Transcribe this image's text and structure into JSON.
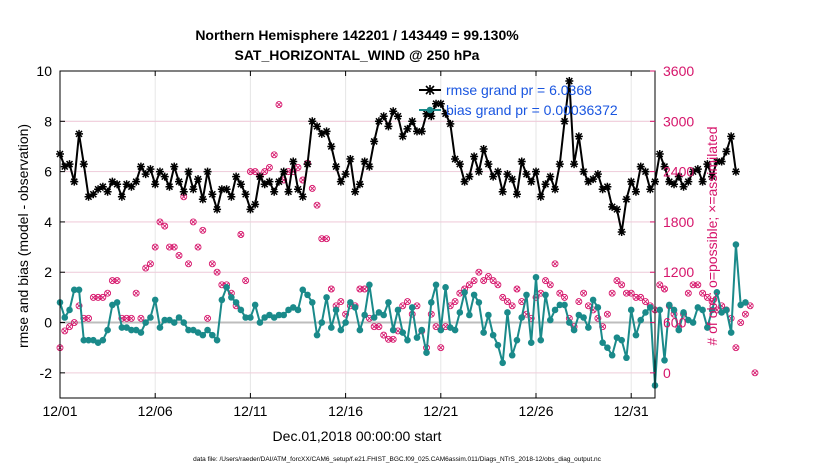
{
  "chart_data": {
    "type": "line",
    "title": "Northern Hemisphere 142201 / 143449 = 99.130%",
    "subtitle": "SAT_HORIZONTAL_WIND @ 250 hPa",
    "xlabel": "Dec.01,2018 00:00:00 start",
    "ylabel_left": "rmse and bias (model - observation)",
    "ylabel_right": "# of obs: o=possible; ×=assimilated",
    "footnote": "data file: /Users/raeder/DAI/ATM_forcXX/CAM6_setup/f.e21.FHIST_BGC.f09_025.CAM6assim.011/Diags_NTrS_2018-12/obs_diag_output.nc",
    "x_ticks": [
      {
        "v": 1,
        "label": "12/01"
      },
      {
        "v": 6,
        "label": "12/06"
      },
      {
        "v": 11,
        "label": "12/11"
      },
      {
        "v": 16,
        "label": "12/16"
      },
      {
        "v": 21,
        "label": "12/21"
      },
      {
        "v": 26,
        "label": "12/26"
      },
      {
        "v": 31,
        "label": "12/31"
      }
    ],
    "xlim": [
      1,
      32.25
    ],
    "ylim_left": [
      -3,
      10
    ],
    "yticks_left": [
      -2,
      0,
      2,
      4,
      6,
      8,
      10
    ],
    "ylim_right": [
      -300,
      3600
    ],
    "yticks_right": [
      0,
      600,
      1200,
      1800,
      2400,
      3000,
      3600
    ],
    "grid": true,
    "legend_position": "top-right",
    "colors": {
      "rmse": "#000000",
      "bias": "#1a8a8a",
      "obs": "#d6156b",
      "zero_line": "#bdbdbd"
    },
    "series": [
      {
        "name": "rmse grand pr = 6.0368",
        "axis": "left",
        "x_start": 1,
        "x_step": 0.25,
        "values": [
          6.7,
          6.2,
          6.3,
          5.6,
          7.5,
          6.3,
          5.0,
          5.1,
          5.3,
          5.4,
          5.2,
          5.6,
          5.5,
          5.0,
          5.5,
          5.4,
          5.6,
          6.2,
          5.9,
          6.1,
          5.5,
          6.0,
          5.8,
          5.4,
          6.2,
          5.6,
          5.2,
          6.0,
          5.3,
          5.7,
          4.9,
          6.0,
          5.1,
          4.5,
          5.3,
          5.3,
          5.0,
          5.8,
          5.5,
          5.1,
          4.5,
          4.7,
          5.8,
          5.5,
          5.6,
          5.2,
          5.6,
          6.0,
          5.2,
          6.4,
          5.3,
          5.0,
          6.3,
          8.0,
          7.8,
          7.5,
          7.6,
          7.0,
          6.2,
          5.6,
          5.9,
          6.5,
          5.2,
          5.5,
          6.4,
          6.2,
          7.2,
          8.0,
          8.2,
          7.8,
          8.4,
          8.2,
          7.4,
          7.7,
          8.0,
          7.6,
          7.6,
          8.3,
          8.2,
          8.7,
          8.7,
          8.3,
          7.9,
          6.5,
          6.3,
          5.6,
          5.8,
          6.6,
          6.0,
          6.9,
          6.3,
          5.8,
          6.0,
          5.2,
          5.9,
          5.7,
          5.1,
          6.4,
          5.9,
          5.6,
          6.0,
          5.0,
          5.5,
          5.8,
          5.3,
          6.3,
          8.0,
          9.6,
          6.3,
          7.4,
          6.0,
          5.6,
          5.7,
          5.9,
          5.3,
          5.4,
          4.6,
          4.5,
          3.6,
          4.9,
          5.6,
          5.2,
          6.2,
          6.0,
          5.3,
          5.6,
          6.7,
          6.2,
          5.6,
          5.5,
          5.8,
          5.4,
          5.6,
          6.0,
          6.1,
          5.6,
          6.3,
          5.8,
          6.4,
          6.4,
          6.8,
          7.4,
          6.0
        ]
      },
      {
        "name": "bias grand pr = 0.00036372",
        "axis": "left",
        "x_start": 1,
        "x_step": 0.25,
        "values": [
          0.8,
          0.2,
          0.5,
          1.3,
          1.3,
          -0.7,
          -0.7,
          -0.7,
          -0.8,
          -0.7,
          -0.3,
          0.7,
          0.8,
          -0.2,
          -0.2,
          -0.3,
          -0.3,
          -0.4,
          0.0,
          0.2,
          0.9,
          -0.2,
          0.1,
          0.1,
          0.0,
          0.2,
          0.0,
          -0.3,
          -0.3,
          -0.4,
          -0.5,
          -0.3,
          -0.5,
          -0.7,
          0.9,
          1.4,
          1.0,
          0.8,
          0.5,
          0.2,
          0.2,
          0.7,
          0.0,
          0.2,
          0.3,
          0.2,
          0.3,
          0.3,
          0.5,
          0.6,
          0.5,
          1.3,
          1.1,
          0.8,
          -0.5,
          0.0,
          1.0,
          -0.2,
          0.5,
          -0.3,
          0.0,
          0.8,
          0.6,
          -0.3,
          0.3,
          1.5,
          0.2,
          0.4,
          0.3,
          0.8,
          -0.3,
          0.5,
          -0.4,
          -0.7,
          0.6,
          -0.6,
          -0.3,
          -1.2,
          0.8,
          1.5,
          -0.3,
          1.4,
          -0.2,
          -0.3,
          0.4,
          1.2,
          0.3,
          1.1,
          0.8,
          -0.4,
          0.3,
          -0.5,
          -0.9,
          -1.6,
          0.4,
          -1.3,
          -0.7,
          0.2,
          1.1,
          -0.8,
          1.8,
          -0.7,
          1.1,
          0.1,
          0.5,
          0.7,
          0.7,
          0.0,
          -0.3,
          0.3,
          0.2,
          -0.2,
          0.9,
          0.6,
          -0.8,
          -1.0,
          -1.3,
          -0.6,
          -0.7,
          -1.4,
          0.5,
          -0.5,
          0.1,
          0.4,
          0.6,
          -2.5,
          0.5,
          -1.5,
          0.7,
          0.5,
          -0.3,
          0.4,
          0.1,
          0.0,
          0.6,
          0.5,
          -0.2,
          0.5,
          1.2,
          0.4,
          0.5,
          -0.4,
          3.1,
          0.7,
          0.8
        ]
      },
      {
        "name": "obs possible",
        "axis": "right",
        "x_start": 1,
        "x_step": 0.25,
        "values": [
          300,
          500,
          550,
          600,
          800,
          650,
          650,
          900,
          900,
          900,
          950,
          1100,
          1100,
          650,
          650,
          650,
          950,
          650,
          1250,
          1300,
          1500,
          1800,
          1750,
          1500,
          1500,
          1400,
          2100,
          1300,
          1800,
          1500,
          1700,
          650,
          1300,
          1200,
          1050,
          1050,
          950,
          800,
          1650,
          1100,
          2400,
          2400,
          2350,
          2400,
          2450,
          2600,
          3200,
          2300,
          2400,
          2400,
          2450,
          2300,
          2500,
          2200,
          2000,
          1600,
          1600,
          1000,
          800,
          850,
          700,
          800,
          800,
          1000,
          1000,
          650,
          550,
          550,
          450,
          400,
          400,
          500,
          800,
          850,
          700,
          800,
          500,
          300,
          700,
          550,
          300,
          550,
          800,
          850,
          950,
          1000,
          1050,
          1100,
          1200,
          1100,
          1150,
          1100,
          1050,
          900,
          850,
          800,
          1000,
          850,
          700,
          650,
          900,
          950,
          1100,
          1050,
          1300,
          950,
          900,
          650,
          550,
          850,
          950,
          800,
          750,
          650,
          550,
          700,
          950,
          1100,
          1050,
          950,
          950,
          900,
          900,
          850,
          800,
          750,
          1050,
          1000,
          800,
          700,
          550,
          700,
          950,
          1050,
          1050,
          950,
          900,
          850,
          750,
          800,
          750,
          650,
          300,
          600,
          700,
          800,
          0
        ]
      }
    ]
  }
}
